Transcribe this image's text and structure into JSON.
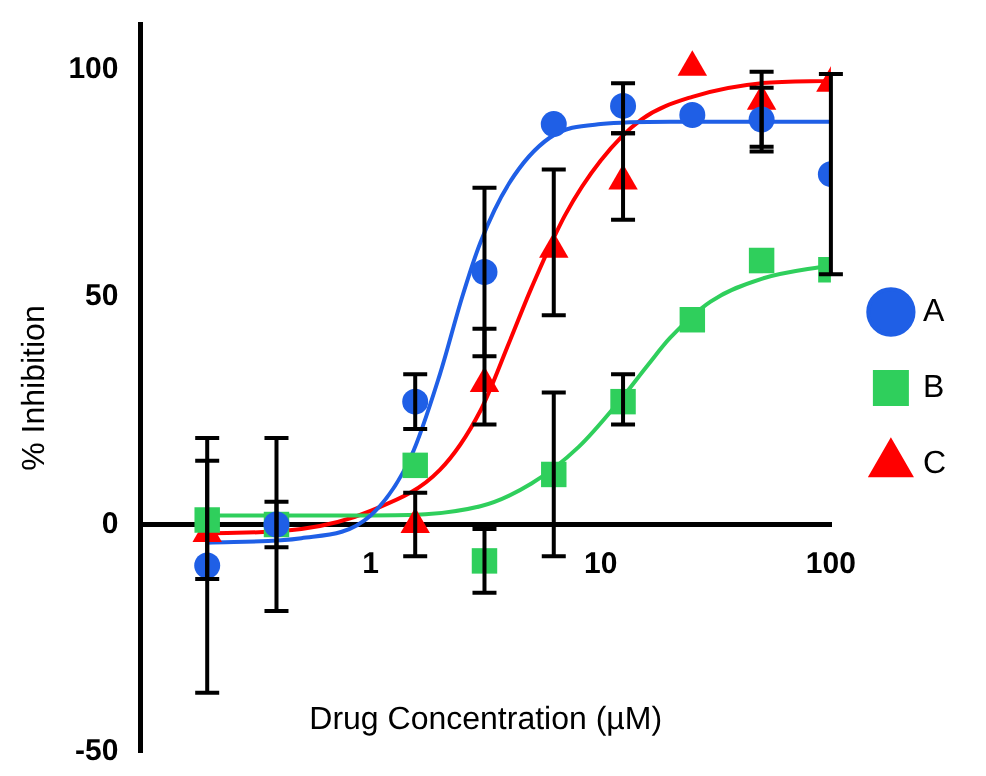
{
  "chart_data": {
    "type": "scatter",
    "xlabel": "Drug Concentration (µM)",
    "ylabel": "% Inhibition",
    "log": "x",
    "xlim": [
      0.1,
      100
    ],
    "xticks": [
      1,
      10,
      100
    ],
    "ylim": [
      -50,
      110
    ],
    "yticks": [
      -50,
      0,
      50,
      100
    ],
    "grid": false,
    "legend": "right",
    "series": [
      {
        "name": "A",
        "color": "#1f5fe6",
        "marker": "circle",
        "x": [
          0.195,
          0.39,
          1.5625,
          3.125,
          6.25,
          12.5,
          25,
          50,
          100
        ],
        "values": [
          -9,
          0,
          27,
          55.5,
          88,
          92,
          90,
          89,
          77
        ],
        "errors": [
          [
            -37,
            19
          ],
          [
            -19,
            19
          ],
          6,
          [
            37,
            74
          ],
          null,
          [
            86,
            97
          ],
          null,
          [
            83,
            96
          ],
          [
            55,
            99
          ]
        ]
      },
      {
        "name": "B",
        "color": "#2fcf5c",
        "marker": "square",
        "x": [
          0.195,
          0.39,
          1.5625,
          3.125,
          6.25,
          12.5,
          25,
          50,
          100
        ],
        "values": [
          1,
          0,
          13,
          -8,
          11,
          27,
          45,
          58,
          56
        ],
        "errors": [
          [
            -12,
            14
          ],
          [
            -5,
            5
          ],
          null,
          [
            -15,
            -1
          ],
          [
            -7,
            29
          ],
          [
            22,
            33
          ],
          null,
          null,
          null
        ]
      },
      {
        "name": "C",
        "color": "#ff0000",
        "marker": "triangle",
        "x": [
          0.195,
          0.39,
          1.5625,
          3.125,
          6.25,
          12.5,
          25,
          50,
          100
        ],
        "values": [
          -2,
          null,
          0,
          31,
          60.5,
          75.5,
          100.5,
          93,
          97
        ],
        "errors": [
          null,
          null,
          [
            -7,
            7
          ],
          [
            22,
            43
          ],
          [
            46,
            78
          ],
          [
            67,
            86
          ],
          null,
          [
            82,
            99.5
          ],
          null
        ]
      },
      {
        "type": "line",
        "color": "#1f5fe6",
        "marker": "none",
        "x": [
          0.195,
          0.5,
          1,
          1.5,
          2,
          2.5,
          3,
          4,
          6,
          10,
          20,
          100
        ],
        "values": [
          -4,
          -3,
          2,
          15,
          33,
          50,
          62,
          75,
          85,
          88,
          88.5,
          88.5
        ]
      },
      {
        "type": "line",
        "color": "#2fcf5c",
        "marker": "none",
        "x": [
          0.195,
          1,
          3,
          5,
          8,
          12,
          16,
          20,
          30,
          50,
          100
        ],
        "values": [
          2,
          2,
          4,
          9,
          17,
          27,
          35,
          41,
          49,
          54,
          57
        ]
      },
      {
        "type": "line",
        "color": "#ff0000",
        "marker": "none",
        "x": [
          0.195,
          0.5,
          1,
          2,
          3,
          4,
          5,
          7,
          10,
          15,
          25,
          50,
          100
        ],
        "values": [
          -2,
          -1,
          3,
          12,
          25,
          40,
          52,
          68,
          80,
          89,
          94,
          97,
          97.5
        ]
      }
    ]
  }
}
